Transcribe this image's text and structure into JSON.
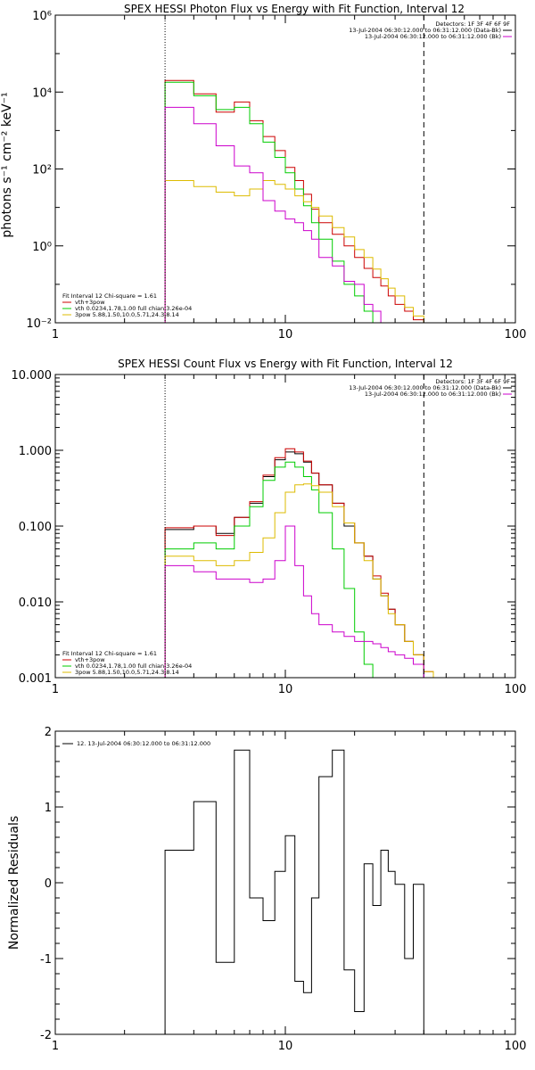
{
  "chart_data": [
    {
      "type": "line",
      "id": "photon",
      "title": "SPEX HESSI Photon Flux vs Energy with Fit Function, Interval 12",
      "xlabel": "",
      "ylabel": "photons s⁻¹ cm⁻² keV⁻¹",
      "xscale": "log",
      "yscale": "log",
      "xlim": [
        1,
        100
      ],
      "ylim": [
        0.01,
        1000000
      ],
      "x_ticks": [
        1,
        10,
        100
      ],
      "x_tick_labels": [
        "1",
        "10",
        "100"
      ],
      "y_ticks": [
        0.01,
        1,
        100,
        10000,
        1000000
      ],
      "y_tick_labels": [
        "10⁻²",
        "10⁰",
        "10²",
        "10⁴",
        "10⁶"
      ],
      "vlines": [
        {
          "x": 3,
          "style": "dotted"
        },
        {
          "x": 40,
          "style": "dashed"
        }
      ],
      "info_lines": [
        "Detectors: 1F 3F 4F 6F 9F",
        "13-Jul-2004 06:30:12.000 to 06:31:12.000 (Data-Bk)",
        "13-Jul-2004 06:30:12.000 to 06:31:12.000 (Bk)"
      ],
      "fit_lines": [
        "Fit Interval 12   Chi-square = 1.61",
        "vth+3pow",
        "vth 0.0234,1.78,1.00  full chian 3.26e-04",
        "3pow 5.88,1.50,10.0,5.71,24.3,8.14"
      ],
      "series": [
        {
          "key": "data",
          "color": "#000000",
          "legend_index": 1,
          "x": [
            3,
            4,
            5,
            6,
            7,
            8,
            9,
            10,
            11,
            12,
            13,
            14,
            15,
            16,
            17,
            18,
            19,
            20,
            21,
            22,
            23,
            24,
            25,
            26,
            27,
            28,
            29,
            30,
            31,
            32,
            33,
            34,
            35,
            36,
            37,
            38,
            39,
            40
          ],
          "values": [
            null,
            null,
            null,
            null,
            null,
            null,
            null,
            null,
            null,
            null,
            null,
            null,
            null,
            null,
            null,
            null,
            null,
            null,
            null,
            null,
            null,
            null,
            null,
            null,
            null,
            null,
            null,
            null,
            null,
            null,
            null,
            null,
            null,
            null,
            null,
            null,
            null,
            null
          ]
        },
        {
          "key": "total",
          "color": "#cc0000",
          "legend_index": 0,
          "edges": [
            3,
            4,
            5,
            6,
            7,
            8,
            9,
            10,
            11,
            12,
            13,
            14,
            16,
            18,
            20,
            22,
            24,
            26,
            28,
            30,
            33,
            36,
            40,
            44
          ],
          "values": [
            20000,
            9000,
            3000,
            5500,
            1800,
            700,
            300,
            110,
            50,
            22,
            9,
            4,
            2,
            1,
            0.5,
            0.26,
            0.15,
            0.09,
            0.05,
            0.03,
            0.02,
            0.012,
            0.009
          ]
        },
        {
          "key": "vth",
          "color": "#00cc00",
          "legend_index": 1,
          "edges": [
            3,
            4,
            5,
            6,
            7,
            8,
            9,
            10,
            11,
            12,
            13,
            14,
            16,
            18,
            20,
            22,
            24,
            26
          ],
          "values": [
            18000,
            8000,
            3500,
            4000,
            1500,
            500,
            200,
            80,
            30,
            11,
            4,
            1.5,
            0.4,
            0.1,
            0.05,
            0.02,
            0.01
          ]
        },
        {
          "key": "pow",
          "color": "#ddbb00",
          "legend_index": 2,
          "edges": [
            3,
            4,
            5,
            6,
            7,
            8,
            9,
            10,
            11,
            12,
            13,
            14,
            16,
            18,
            20,
            22,
            24,
            26,
            28,
            30,
            33,
            36,
            40,
            44
          ],
          "values": [
            50,
            35,
            25,
            20,
            30,
            50,
            40,
            30,
            20,
            14,
            10,
            6,
            3,
            1.7,
            0.8,
            0.5,
            0.25,
            0.14,
            0.08,
            0.05,
            0.025,
            0.015,
            0.01
          ]
        },
        {
          "key": "bk",
          "color": "#cc00cc",
          "legend_index": 2,
          "edges": [
            3,
            4,
            5,
            6,
            7,
            8,
            9,
            10,
            11,
            12,
            13,
            14,
            16,
            18,
            20,
            22,
            24,
            26,
            28,
            30,
            33,
            36,
            40,
            44
          ],
          "values": [
            4000,
            1500,
            400,
            120,
            80,
            15,
            8,
            5,
            4,
            2.5,
            1.5,
            0.5,
            0.3,
            0.12,
            0.1,
            0.03,
            0.02,
            0.01,
            0.007,
            0.007,
            0.007,
            0.007,
            0.007
          ]
        }
      ]
    },
    {
      "type": "line",
      "id": "count",
      "title": "SPEX HESSI Count Flux vs Energy with Fit Function, Interval 12",
      "xscale": "log",
      "yscale": "log",
      "xlim": [
        1,
        100
      ],
      "ylim": [
        0.001,
        10
      ],
      "x_ticks": [
        1,
        10,
        100
      ],
      "x_tick_labels": [
        "1",
        "10",
        "100"
      ],
      "y_ticks": [
        0.001,
        0.01,
        0.1,
        1,
        10
      ],
      "y_tick_labels": [
        "0.001",
        "0.010",
        "0.100",
        "1.000",
        "10.000"
      ],
      "vlines": [
        {
          "x": 3,
          "style": "dotted"
        },
        {
          "x": 40,
          "style": "dashed"
        }
      ],
      "info_lines": [
        "Detectors: 1F 3F 4F 6F 9F",
        "13-Jul-2004 06:30:12.000 to 06:31:12.000 (Data-Bk)",
        "13-Jul-2004 06:30:12.000 to 06:31:12.000 (Bk)"
      ],
      "fit_lines": [
        "Fit Interval 12   Chi-square = 1.61",
        "vth+3pow",
        "vth 0.0234,1.78,1.00  full chian 3.26e-04",
        "3pow 5.88,1.50,10.0,5.71,24.3,8.14"
      ],
      "series": [
        {
          "key": "data",
          "color": "#000000",
          "edges": [
            3,
            4,
            5,
            6,
            7,
            8,
            9,
            10,
            11,
            12,
            13,
            14,
            16,
            18,
            20,
            22,
            24,
            26,
            28,
            30,
            33,
            36,
            40
          ],
          "values": [
            0.09,
            0.1,
            0.08,
            0.13,
            0.2,
            0.45,
            0.75,
            0.95,
            0.9,
            0.7,
            0.5,
            0.35,
            0.2,
            0.1,
            0.06,
            0.04,
            0.02,
            0.012,
            0.008,
            0.005,
            0.003,
            0.002
          ]
        },
        {
          "key": "total",
          "color": "#cc0000",
          "edges": [
            3,
            4,
            5,
            6,
            7,
            8,
            9,
            10,
            11,
            12,
            13,
            14,
            16,
            18,
            20,
            22,
            24,
            26,
            28,
            30,
            33,
            36,
            40,
            44
          ],
          "values": [
            0.095,
            0.1,
            0.075,
            0.13,
            0.21,
            0.47,
            0.8,
            1.05,
            0.95,
            0.72,
            0.5,
            0.35,
            0.2,
            0.11,
            0.06,
            0.04,
            0.022,
            0.013,
            0.008,
            0.005,
            0.003,
            0.002,
            0.0012
          ]
        },
        {
          "key": "vth",
          "color": "#00cc00",
          "edges": [
            3,
            4,
            5,
            6,
            7,
            8,
            9,
            10,
            11,
            12,
            13,
            14,
            16,
            18,
            20,
            22,
            24,
            26
          ],
          "values": [
            0.05,
            0.06,
            0.05,
            0.1,
            0.18,
            0.4,
            0.6,
            0.7,
            0.6,
            0.45,
            0.3,
            0.15,
            0.05,
            0.015,
            0.004,
            0.0015,
            0.0008
          ]
        },
        {
          "key": "pow",
          "color": "#ddbb00",
          "edges": [
            3,
            4,
            5,
            6,
            7,
            8,
            9,
            10,
            11,
            12,
            13,
            14,
            16,
            18,
            20,
            22,
            24,
            26,
            28,
            30,
            33,
            36,
            40,
            44
          ],
          "values": [
            0.04,
            0.035,
            0.03,
            0.035,
            0.045,
            0.07,
            0.15,
            0.28,
            0.35,
            0.36,
            0.34,
            0.28,
            0.18,
            0.11,
            0.06,
            0.035,
            0.02,
            0.012,
            0.007,
            0.005,
            0.003,
            0.002,
            0.0012
          ]
        },
        {
          "key": "bk",
          "color": "#cc00cc",
          "edges": [
            3,
            4,
            5,
            6,
            7,
            8,
            9,
            10,
            11,
            12,
            13,
            14,
            16,
            18,
            20,
            22,
            24,
            26,
            28,
            30,
            33,
            36,
            40
          ],
          "values": [
            0.03,
            0.025,
            0.02,
            0.02,
            0.018,
            0.02,
            0.035,
            0.1,
            0.03,
            0.012,
            0.007,
            0.005,
            0.004,
            0.0035,
            0.003,
            0.003,
            0.0028,
            0.0025,
            0.0022,
            0.002,
            0.0018,
            0.0015
          ]
        }
      ]
    },
    {
      "type": "line",
      "id": "resid",
      "title": "",
      "ylabel": "Normalized Residuals",
      "xscale": "log",
      "yscale": "linear",
      "xlim": [
        1,
        100
      ],
      "ylim": [
        -2,
        2
      ],
      "x_ticks": [
        1,
        10,
        100
      ],
      "x_tick_labels": [
        "1",
        "10",
        "100"
      ],
      "y_ticks": [
        -2,
        -1,
        0,
        1,
        2
      ],
      "y_tick_labels": [
        "-2",
        "-1",
        "0",
        "1",
        "2"
      ],
      "legend": [
        "12. 13-Jul-2004 06:30:12.000 to 06:31:12.000"
      ],
      "series": [
        {
          "key": "resid",
          "color": "#000000",
          "edges": [
            3,
            4,
            5,
            6,
            7,
            8,
            9,
            10,
            11,
            12,
            13,
            14,
            16,
            18,
            20,
            22,
            24,
            26,
            28,
            30,
            33,
            36,
            40
          ],
          "values": [
            0.43,
            1.07,
            -1.05,
            1.75,
            -0.2,
            -0.5,
            0.15,
            0.62,
            -1.3,
            -1.45,
            -0.2,
            1.4,
            1.75,
            -1.15,
            -1.7,
            0.25,
            -0.3,
            0.43,
            0.15,
            -0.02,
            -1.0,
            -0.02
          ]
        }
      ]
    }
  ]
}
